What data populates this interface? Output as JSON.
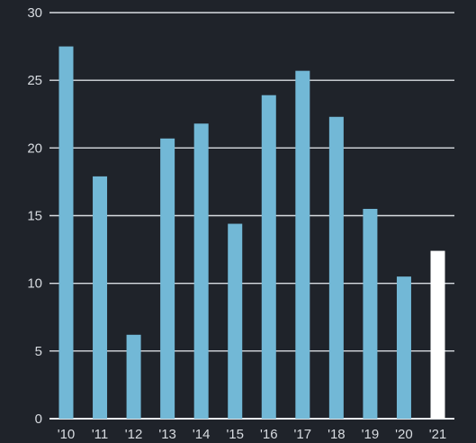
{
  "chart_data": {
    "type": "bar",
    "title": "",
    "xlabel": "",
    "ylabel": "",
    "categories": [
      "'10",
      "'11",
      "'12",
      "'13",
      "'14",
      "'15",
      "'16",
      "'17",
      "'18",
      "'19",
      "'20",
      "'21"
    ],
    "values": [
      27.5,
      17.9,
      6.2,
      20.7,
      21.8,
      14.4,
      23.9,
      25.7,
      22.3,
      15.5,
      10.5,
      12.4
    ],
    "ylim": [
      0,
      30
    ],
    "yticks": [
      0,
      5,
      10,
      15,
      20,
      25,
      30
    ],
    "grid": true,
    "legend": "none",
    "colors": {
      "background": "#1f232a",
      "bar": "#72b8d6",
      "highlight_bar": "#ffffff",
      "grid": "#d9dde2",
      "text": "#d7dbe0"
    },
    "highlight_index": 11
  }
}
